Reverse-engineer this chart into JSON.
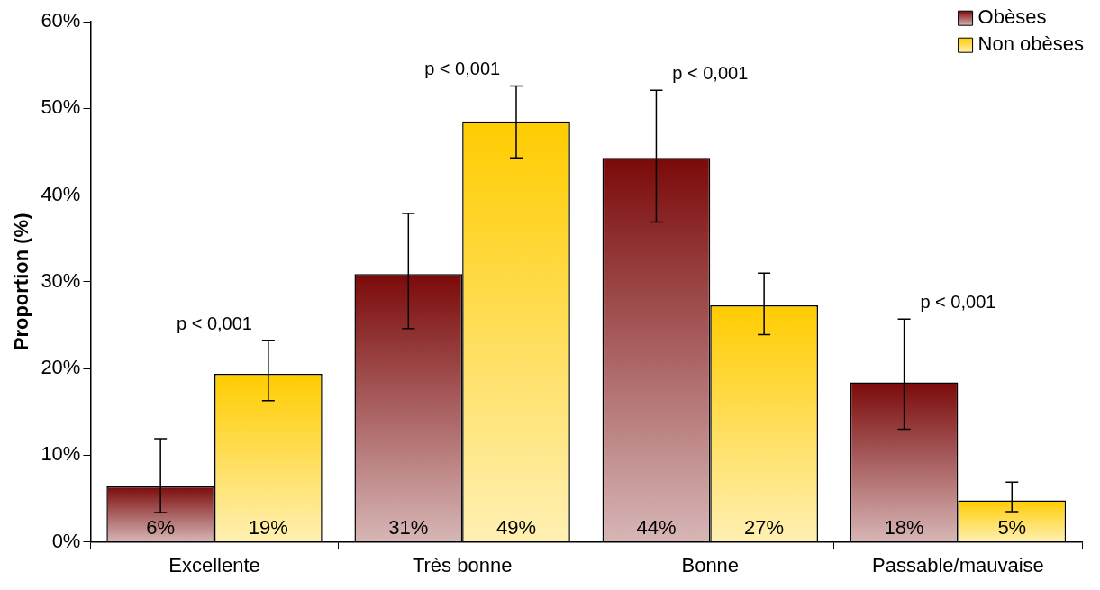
{
  "chart_data": {
    "type": "bar",
    "ylabel": "Proportion (%)",
    "categories": [
      "Excellente",
      "Très bonne",
      "Bonne",
      "Passable/mauvaise"
    ],
    "series": [
      {
        "name": "Obèses",
        "color": "#7b0a0a",
        "values": [
          6.4,
          30.9,
          44.3,
          18.4
        ],
        "value_labels": [
          "6%",
          "31%",
          "44%",
          "18%"
        ],
        "errors": [
          [
            3.4,
            11.9
          ],
          [
            24.6,
            37.9
          ],
          [
            36.9,
            52.1
          ],
          [
            13.0,
            25.7
          ]
        ]
      },
      {
        "name": "Non obèses",
        "color": "#ffcc00",
        "values": [
          19.4,
          48.5,
          27.3,
          4.8
        ],
        "value_labels": [
          "19%",
          "49%",
          "27%",
          "5%"
        ],
        "errors": [
          [
            16.3,
            23.2
          ],
          [
            44.3,
            52.6
          ],
          [
            23.9,
            31.0
          ],
          [
            3.5,
            6.9
          ]
        ]
      }
    ],
    "ylim": [
      0,
      60
    ],
    "yticks": [
      {
        "value": 0,
        "label": "0%"
      },
      {
        "value": 10,
        "label": "10%"
      },
      {
        "value": 20,
        "label": "20%"
      },
      {
        "value": 30,
        "label": "30%"
      },
      {
        "value": 40,
        "label": "40%"
      },
      {
        "value": 50,
        "label": "50%"
      },
      {
        "value": 60,
        "label": "60%"
      }
    ],
    "grid": false,
    "legend": "top right",
    "annotations": [
      "p < 0,001",
      "p < 0,001",
      "p < 0,001",
      "p < 0,001"
    ]
  }
}
